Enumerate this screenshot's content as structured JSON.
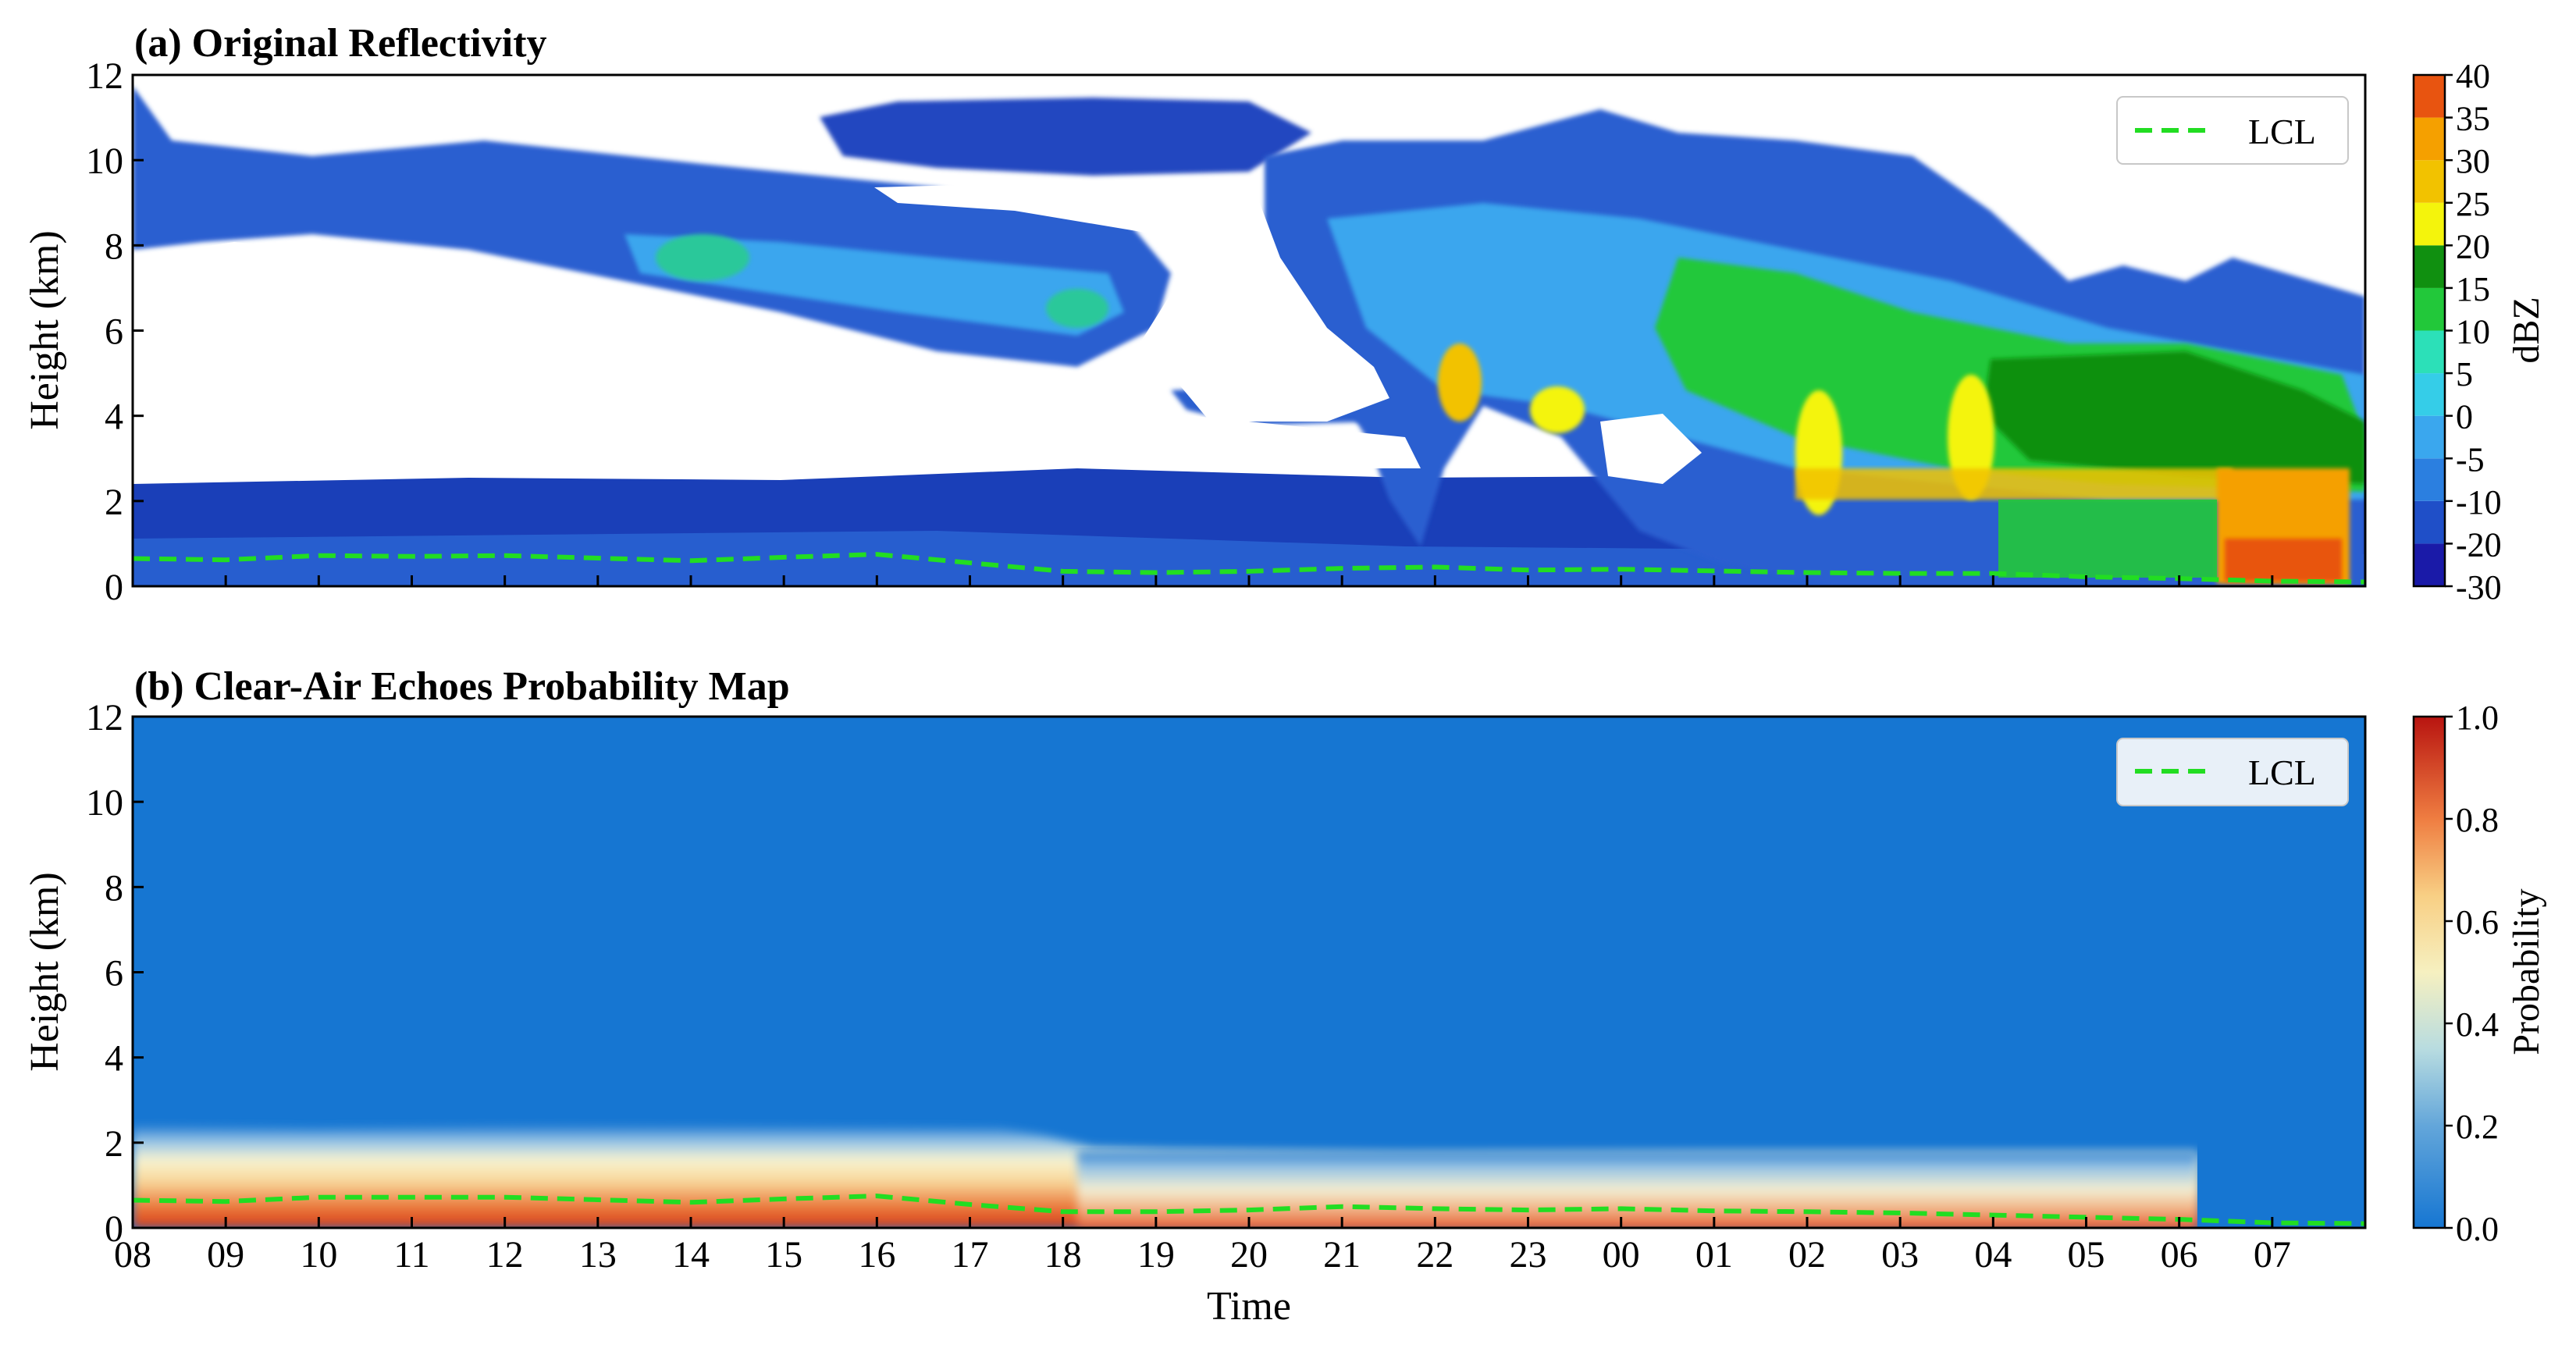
{
  "time_ticks": [
    "08",
    "09",
    "10",
    "11",
    "12",
    "13",
    "14",
    "15",
    "16",
    "17",
    "18",
    "19",
    "20",
    "21",
    "22",
    "23",
    "00",
    "01",
    "02",
    "03",
    "04",
    "05",
    "06",
    "07"
  ],
  "height_ticks": [
    "0",
    "2",
    "4",
    "6",
    "8",
    "10",
    "12"
  ],
  "xlabel": "Time",
  "chart_data": [
    {
      "type": "heatmap",
      "title": "(a) Original Reflectivity",
      "xlabel": "",
      "ylabel": "Height (km)",
      "ylim": [
        0,
        12
      ],
      "x_range_hours_from_08": [
        0,
        24
      ],
      "colorbar": {
        "label": "dBZ",
        "ticks": [
          "-30",
          "-20",
          "-10",
          "-5",
          "0",
          "5",
          "10",
          "15",
          "20",
          "25",
          "30",
          "35",
          "40"
        ],
        "colors": [
          "#1a1aa8",
          "#1f4fc8",
          "#2b7fe0",
          "#3aa7ee",
          "#35cde8",
          "#2ce0b8",
          "#22c83a",
          "#109010",
          "#f4f40c",
          "#f2c200",
          "#f5a000",
          "#e85410",
          "#d41a10"
        ]
      },
      "legend": {
        "position": "top-right",
        "entries": [
          "LCL"
        ]
      },
      "lcl_series": {
        "name": "LCL",
        "color": "#22dd22",
        "style": "dashed",
        "hours": [
          0,
          1,
          2,
          3,
          4,
          5,
          6,
          7,
          8,
          9,
          10,
          11,
          12,
          13,
          14,
          15,
          16,
          17,
          18,
          19,
          20,
          21,
          22,
          23,
          24
        ],
        "height_km": [
          0.65,
          0.62,
          0.72,
          0.7,
          0.72,
          0.66,
          0.6,
          0.68,
          0.75,
          0.55,
          0.35,
          0.32,
          0.35,
          0.42,
          0.45,
          0.38,
          0.4,
          0.36,
          0.32,
          0.3,
          0.3,
          0.22,
          0.18,
          0.12,
          0.1
        ]
      }
    },
    {
      "type": "heatmap",
      "title": "(b) Clear-Air Echoes Probability Map",
      "xlabel": "Time",
      "ylabel": "Height (km)",
      "ylim": [
        0,
        12
      ],
      "x_range_hours_from_08": [
        0,
        24
      ],
      "colorbar": {
        "label": "Probability",
        "ticks": [
          "0.0",
          "0.2",
          "0.4",
          "0.6",
          "0.8",
          "1.0"
        ],
        "colors": [
          "#1676d2",
          "#8cc0e0",
          "#f6f0c0",
          "#f6d27a",
          "#ef7d41",
          "#c81e12"
        ]
      },
      "legend": {
        "position": "top-right",
        "entries": [
          "LCL"
        ]
      },
      "lcl_series": {
        "name": "LCL",
        "color": "#22dd22",
        "style": "dashed",
        "hours": [
          0,
          1,
          2,
          3,
          4,
          5,
          6,
          7,
          8,
          9,
          10,
          11,
          12,
          13,
          14,
          15,
          16,
          17,
          18,
          19,
          20,
          21,
          22,
          23,
          24
        ],
        "height_km": [
          0.65,
          0.62,
          0.72,
          0.72,
          0.72,
          0.66,
          0.6,
          0.68,
          0.75,
          0.55,
          0.38,
          0.38,
          0.42,
          0.5,
          0.45,
          0.42,
          0.45,
          0.4,
          0.38,
          0.35,
          0.3,
          0.25,
          0.2,
          0.12,
          0.1
        ]
      }
    }
  ]
}
